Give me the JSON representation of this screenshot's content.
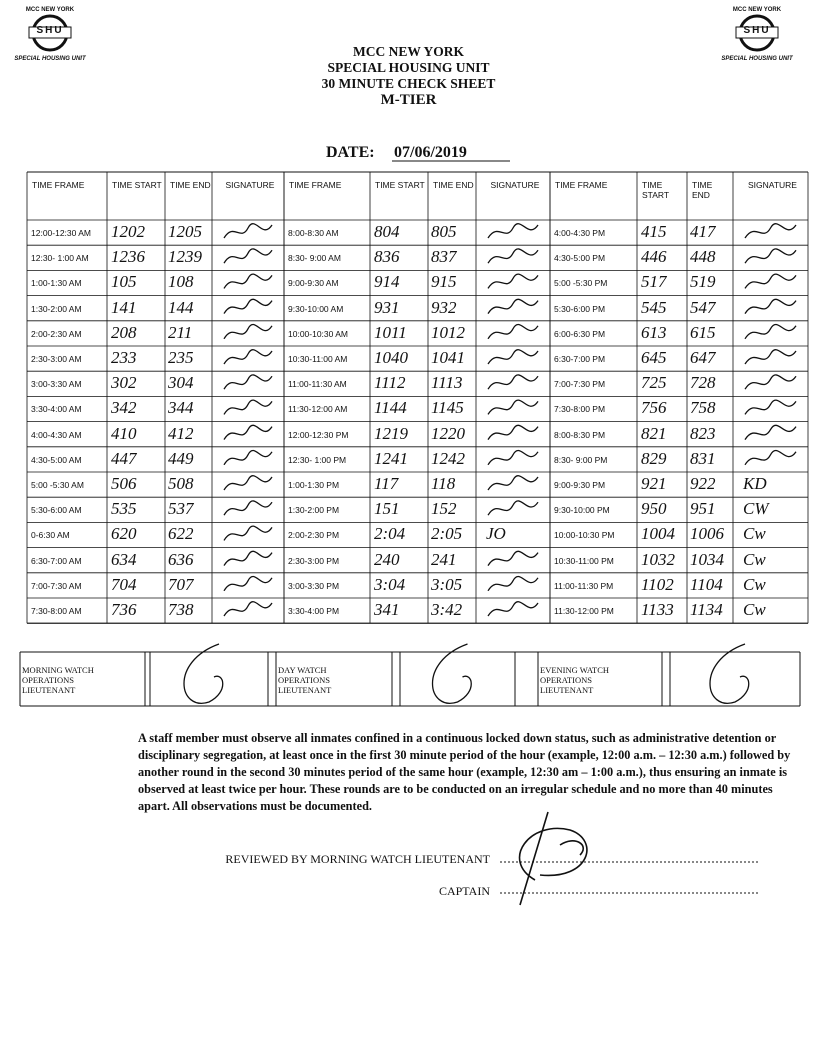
{
  "header": {
    "title_lines": [
      "MCC NEW YORK",
      "SPECIAL HOUSING UNIT",
      "30 MINUTE CHECK SHEET",
      "M-TIER"
    ],
    "date_label": "DATE:",
    "date_value": "07/06/2019"
  },
  "logo": {
    "top": "MCC NEW YORK",
    "middle": "SHU",
    "bottom": "SPECIAL HOUSING UNIT"
  },
  "table": {
    "headers": [
      "TIME FRAME",
      "TIME START",
      "TIME END",
      "SIGNATURE"
    ],
    "sections": [
      {
        "rows": [
          {
            "frame": "12:00-12:30 AM",
            "start": "1202",
            "end": "1205"
          },
          {
            "frame": "12:30- 1:00 AM",
            "start": "1236",
            "end": "1239"
          },
          {
            "frame": "1:00-1:30 AM",
            "start": "105",
            "end": "108"
          },
          {
            "frame": "1:30-2:00 AM",
            "start": "141",
            "end": "144"
          },
          {
            "frame": "2:00-2:30 AM",
            "start": "208",
            "end": "211"
          },
          {
            "frame": "2:30-3:00 AM",
            "start": "233",
            "end": "235"
          },
          {
            "frame": "3:00-3:30 AM",
            "start": "302",
            "end": "304"
          },
          {
            "frame": "3:30-4:00 AM",
            "start": "342",
            "end": "344"
          },
          {
            "frame": "4:00-4:30 AM",
            "start": "410",
            "end": "412"
          },
          {
            "frame": "4:30-5:00 AM",
            "start": "447",
            "end": "449"
          },
          {
            "frame": "5:00 -5:30 AM",
            "start": "506",
            "end": "508"
          },
          {
            "frame": "5:30-6:00 AM",
            "start": "535",
            "end": "537"
          },
          {
            "frame": "0-6:30 AM",
            "start": "620",
            "end": "622"
          },
          {
            "frame": "6:30-7:00 AM",
            "start": "634",
            "end": "636"
          },
          {
            "frame": "7:00-7:30 AM",
            "start": "704",
            "end": "707"
          },
          {
            "frame": "7:30-8:00 AM",
            "start": "736",
            "end": "738"
          }
        ]
      },
      {
        "rows": [
          {
            "frame": "8:00-8:30 AM",
            "start": "804",
            "end": "805"
          },
          {
            "frame": "8:30- 9:00 AM",
            "start": "836",
            "end": "837"
          },
          {
            "frame": "9:00-9:30 AM",
            "start": "914",
            "end": "915"
          },
          {
            "frame": "9:30-10:00 AM",
            "start": "931",
            "end": "932"
          },
          {
            "frame": "10:00-10:30 AM",
            "start": "1011",
            "end": "1012"
          },
          {
            "frame": "10:30-11:00 AM",
            "start": "1040",
            "end": "1041"
          },
          {
            "frame": "11:00-11:30 AM",
            "start": "1112",
            "end": "1113"
          },
          {
            "frame": "11:30-12:00 AM",
            "start": "1144",
            "end": "1145"
          },
          {
            "frame": "12:00-12:30 PM",
            "start": "1219",
            "end": "1220"
          },
          {
            "frame": "12:30- 1:00 PM",
            "start": "1241",
            "end": "1242"
          },
          {
            "frame": "1:00-1:30 PM",
            "start": "117",
            "end": "118"
          },
          {
            "frame": "1:30-2:00 PM",
            "start": "151",
            "end": "152"
          },
          {
            "frame": "2:00-2:30 PM",
            "start": "2:04",
            "end": "2:05",
            "sig": "JO"
          },
          {
            "frame": "2:30-3:00 PM",
            "start": "240",
            "end": "241"
          },
          {
            "frame": "3:00-3:30 PM",
            "start": "3:04",
            "end": "3:05"
          },
          {
            "frame": "3:30-4:00 PM",
            "start": "341",
            "end": "3:42"
          }
        ]
      },
      {
        "rows": [
          {
            "frame": "4:00-4:30 PM",
            "start": "415",
            "end": "417"
          },
          {
            "frame": "4:30-5:00 PM",
            "start": "446",
            "end": "448"
          },
          {
            "frame": "5:00 -5:30 PM",
            "start": "517",
            "end": "519"
          },
          {
            "frame": "5:30-6:00 PM",
            "start": "545",
            "end": "547"
          },
          {
            "frame": "6:00-6:30 PM",
            "start": "613",
            "end": "615"
          },
          {
            "frame": "6:30-7:00 PM",
            "start": "645",
            "end": "647"
          },
          {
            "frame": "7:00-7:30 PM",
            "start": "725",
            "end": "728"
          },
          {
            "frame": "7:30-8:00 PM",
            "start": "756",
            "end": "758"
          },
          {
            "frame": "8:00-8:30 PM",
            "start": "821",
            "end": "823"
          },
          {
            "frame": "8:30- 9:00 PM",
            "start": "829",
            "end": "831"
          },
          {
            "frame": "9:00-9:30 PM",
            "start": "921",
            "end": "922",
            "sig": "KD"
          },
          {
            "frame": "9:30-10:00 PM",
            "start": "950",
            "end": "951",
            "sig": "CW"
          },
          {
            "frame": "10:00-10:30 PM",
            "start": "1004",
            "end": "1006",
            "sig": "Cw"
          },
          {
            "frame": "10:30-11:00 PM",
            "start": "1032",
            "end": "1034",
            "sig": "Cw"
          },
          {
            "frame": "11:00-11:30 PM",
            "start": "1102",
            "end": "1104",
            "sig": "Cw"
          },
          {
            "frame": "11:30-12:00 PM",
            "start": "1133",
            "end": "1134",
            "sig": "Cw"
          }
        ]
      }
    ]
  },
  "lieutenants": [
    "MORNING WATCH OPERATIONS LIEUTENANT",
    "DAY WATCH OPERATIONS LIEUTENANT",
    "EVENING WATCH OPERATIONS LIEUTENANT"
  ],
  "notice": "A staff member must observe all inmates confined in a continuous locked down status, such as administrative detention or disciplinary segregation, at least once in the first 30 minute period of the hour (example, 12:00 a.m. – 12:30 a.m.) followed by another round in the second 30 minutes period of the same hour (example, 12:30 am – 1:00 a.m.), thus ensuring an inmate is observed at least twice per hour. These rounds are to be conducted on an irregular schedule and no more than 40 minutes apart. All observations must be documented.",
  "review": {
    "reviewed_by": "REVIEWED BY MORNING WATCH LIEUTENANT",
    "captain": "CAPTAIN"
  }
}
